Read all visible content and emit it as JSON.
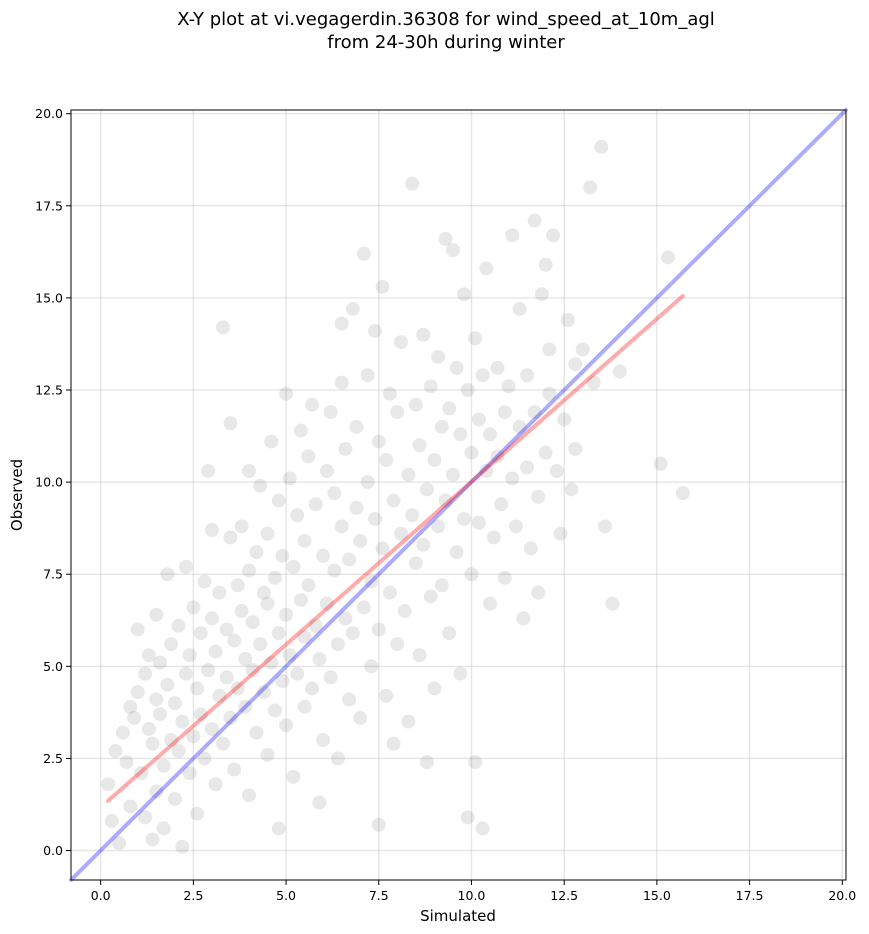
{
  "chart_data": {
    "type": "scatter",
    "title": "X-Y plot at vi.vegagerdin.36308 for wind_speed_at_10m_agl",
    "subtitle": "from 24-30h during winter",
    "xlabel": "Simulated",
    "ylabel": "Observed",
    "xlim": [
      -0.8,
      20.1
    ],
    "ylim": [
      -0.8,
      20.1
    ],
    "xticks": [
      0.0,
      2.5,
      5.0,
      7.5,
      10.0,
      12.5,
      15.0,
      17.5,
      20.0
    ],
    "yticks": [
      0.0,
      2.5,
      5.0,
      7.5,
      10.0,
      12.5,
      15.0,
      17.5,
      20.0
    ],
    "xtick_labels": [
      "0.0",
      "2.5",
      "5.0",
      "7.5",
      "10.0",
      "12.5",
      "15.0",
      "17.5",
      "20.0"
    ],
    "ytick_labels": [
      "0.0",
      "2.5",
      "5.0",
      "7.5",
      "10.0",
      "12.5",
      "15.0",
      "17.5",
      "20.0"
    ],
    "grid": true,
    "lines": [
      {
        "kind": "identity",
        "color": "#0000ff",
        "x": [
          -0.8,
          20.1
        ],
        "y": [
          -0.8,
          20.1
        ]
      },
      {
        "kind": "fit",
        "color": "#ff0000",
        "x": [
          0.2,
          15.7
        ],
        "y": [
          1.35,
          15.05
        ]
      }
    ],
    "point_color": "#000000",
    "points": [
      [
        0.2,
        1.8
      ],
      [
        0.3,
        0.8
      ],
      [
        0.4,
        2.7
      ],
      [
        0.5,
        0.2
      ],
      [
        0.6,
        3.2
      ],
      [
        0.7,
        2.4
      ],
      [
        0.8,
        1.2
      ],
      [
        0.8,
        3.9
      ],
      [
        0.9,
        3.6
      ],
      [
        1.0,
        4.3
      ],
      [
        1.0,
        6.0
      ],
      [
        1.1,
        2.1
      ],
      [
        1.2,
        0.9
      ],
      [
        1.2,
        4.8
      ],
      [
        1.3,
        3.3
      ],
      [
        1.3,
        5.3
      ],
      [
        1.4,
        0.3
      ],
      [
        1.4,
        2.9
      ],
      [
        1.5,
        1.6
      ],
      [
        1.5,
        4.1
      ],
      [
        1.5,
        6.4
      ],
      [
        1.6,
        3.7
      ],
      [
        1.6,
        5.1
      ],
      [
        1.7,
        2.3
      ],
      [
        1.7,
        0.6
      ],
      [
        1.8,
        4.5
      ],
      [
        1.8,
        7.5
      ],
      [
        1.9,
        3.0
      ],
      [
        1.9,
        5.6
      ],
      [
        2.0,
        1.4
      ],
      [
        2.0,
        4.0
      ],
      [
        2.1,
        2.7
      ],
      [
        2.1,
        6.1
      ],
      [
        2.2,
        3.5
      ],
      [
        2.2,
        0.1
      ],
      [
        2.3,
        4.8
      ],
      [
        2.3,
        7.7
      ],
      [
        2.4,
        2.1
      ],
      [
        2.4,
        5.3
      ],
      [
        2.5,
        3.1
      ],
      [
        2.5,
        6.6
      ],
      [
        2.6,
        1.0
      ],
      [
        2.6,
        4.4
      ],
      [
        2.7,
        3.7
      ],
      [
        2.7,
        5.9
      ],
      [
        2.8,
        7.3
      ],
      [
        2.8,
        2.5
      ],
      [
        2.9,
        10.3
      ],
      [
        2.9,
        4.9
      ],
      [
        3.0,
        3.3
      ],
      [
        3.0,
        8.7
      ],
      [
        3.0,
        6.3
      ],
      [
        3.1,
        1.8
      ],
      [
        3.1,
        5.4
      ],
      [
        3.2,
        4.2
      ],
      [
        3.2,
        7.0
      ],
      [
        3.3,
        14.2
      ],
      [
        3.3,
        2.9
      ],
      [
        3.4,
        6.0
      ],
      [
        3.4,
        4.7
      ],
      [
        3.5,
        11.6
      ],
      [
        3.5,
        8.5
      ],
      [
        3.5,
        3.6
      ],
      [
        3.6,
        5.7
      ],
      [
        3.6,
        2.2
      ],
      [
        3.7,
        7.2
      ],
      [
        3.7,
        4.4
      ],
      [
        3.8,
        6.5
      ],
      [
        3.8,
        8.8
      ],
      [
        3.9,
        3.9
      ],
      [
        3.9,
        5.2
      ],
      [
        4.0,
        1.5
      ],
      [
        4.0,
        7.6
      ],
      [
        4.0,
        10.3
      ],
      [
        4.1,
        4.9
      ],
      [
        4.1,
        6.2
      ],
      [
        4.2,
        8.1
      ],
      [
        4.2,
        3.2
      ],
      [
        4.3,
        5.6
      ],
      [
        4.3,
        9.9
      ],
      [
        4.4,
        7.0
      ],
      [
        4.4,
        4.3
      ],
      [
        4.5,
        2.6
      ],
      [
        4.5,
        6.7
      ],
      [
        4.5,
        8.6
      ],
      [
        4.6,
        5.1
      ],
      [
        4.6,
        11.1
      ],
      [
        4.7,
        3.8
      ],
      [
        4.7,
        7.4
      ],
      [
        4.8,
        9.5
      ],
      [
        4.8,
        5.9
      ],
      [
        4.8,
        0.6
      ],
      [
        4.9,
        4.6
      ],
      [
        4.9,
        8.0
      ],
      [
        5.0,
        6.4
      ],
      [
        5.0,
        12.4
      ],
      [
        5.0,
        3.4
      ],
      [
        5.1,
        10.1
      ],
      [
        5.1,
        5.3
      ],
      [
        5.2,
        7.7
      ],
      [
        5.2,
        2.0
      ],
      [
        5.3,
        9.1
      ],
      [
        5.3,
        4.8
      ],
      [
        5.4,
        6.8
      ],
      [
        5.4,
        11.4
      ],
      [
        5.5,
        8.4
      ],
      [
        5.5,
        3.9
      ],
      [
        5.5,
        5.8
      ],
      [
        5.6,
        10.7
      ],
      [
        5.6,
        7.2
      ],
      [
        5.7,
        4.4
      ],
      [
        5.7,
        12.1
      ],
      [
        5.8,
        6.1
      ],
      [
        5.8,
        9.4
      ],
      [
        5.9,
        1.3
      ],
      [
        5.9,
        5.2
      ],
      [
        6.0,
        8.0
      ],
      [
        6.0,
        3.0
      ],
      [
        6.1,
        10.3
      ],
      [
        6.1,
        6.7
      ],
      [
        6.2,
        11.9
      ],
      [
        6.2,
        4.7
      ],
      [
        6.3,
        7.6
      ],
      [
        6.3,
        9.7
      ],
      [
        6.4,
        5.6
      ],
      [
        6.4,
        2.5
      ],
      [
        6.5,
        12.7
      ],
      [
        6.5,
        8.8
      ],
      [
        6.5,
        14.3
      ],
      [
        6.6,
        6.3
      ],
      [
        6.6,
        10.9
      ],
      [
        6.7,
        4.1
      ],
      [
        6.7,
        7.9
      ],
      [
        6.8,
        14.7
      ],
      [
        6.8,
        5.9
      ],
      [
        6.9,
        9.3
      ],
      [
        6.9,
        11.5
      ],
      [
        7.0,
        3.6
      ],
      [
        7.0,
        8.4
      ],
      [
        7.1,
        6.6
      ],
      [
        7.1,
        16.2
      ],
      [
        7.2,
        10.0
      ],
      [
        7.2,
        12.9
      ],
      [
        7.3,
        5.0
      ],
      [
        7.3,
        7.3
      ],
      [
        7.4,
        9.0
      ],
      [
        7.4,
        14.1
      ],
      [
        7.5,
        6.0
      ],
      [
        7.5,
        11.1
      ],
      [
        7.5,
        0.7
      ],
      [
        7.6,
        8.2
      ],
      [
        7.6,
        15.3
      ],
      [
        7.7,
        4.2
      ],
      [
        7.7,
        10.6
      ],
      [
        7.8,
        7.0
      ],
      [
        7.8,
        12.4
      ],
      [
        7.9,
        9.5
      ],
      [
        7.9,
        2.9
      ],
      [
        8.0,
        5.6
      ],
      [
        8.0,
        11.9
      ],
      [
        8.1,
        8.6
      ],
      [
        8.1,
        13.8
      ],
      [
        8.2,
        6.5
      ],
      [
        8.3,
        10.2
      ],
      [
        8.3,
        3.5
      ],
      [
        8.4,
        9.1
      ],
      [
        8.4,
        18.1
      ],
      [
        8.5,
        7.8
      ],
      [
        8.5,
        12.1
      ],
      [
        8.6,
        5.3
      ],
      [
        8.6,
        11.0
      ],
      [
        8.7,
        8.3
      ],
      [
        8.7,
        14.0
      ],
      [
        8.8,
        2.4
      ],
      [
        8.8,
        9.8
      ],
      [
        8.9,
        6.9
      ],
      [
        8.9,
        12.6
      ],
      [
        9.0,
        10.6
      ],
      [
        9.0,
        4.4
      ],
      [
        9.1,
        8.8
      ],
      [
        9.1,
        13.4
      ],
      [
        9.2,
        11.5
      ],
      [
        9.2,
        7.2
      ],
      [
        9.3,
        16.6
      ],
      [
        9.3,
        9.5
      ],
      [
        9.4,
        5.9
      ],
      [
        9.4,
        12.0
      ],
      [
        9.5,
        10.2
      ],
      [
        9.5,
        16.3
      ],
      [
        9.6,
        8.1
      ],
      [
        9.6,
        13.1
      ],
      [
        9.7,
        11.3
      ],
      [
        9.7,
        4.8
      ],
      [
        9.8,
        15.1
      ],
      [
        9.8,
        9.0
      ],
      [
        9.9,
        12.5
      ],
      [
        9.9,
        0.9
      ],
      [
        10.0,
        10.8
      ],
      [
        10.0,
        7.5
      ],
      [
        10.1,
        13.9
      ],
      [
        10.1,
        2.4
      ],
      [
        10.2,
        11.7
      ],
      [
        10.2,
        8.9
      ],
      [
        10.3,
        0.6
      ],
      [
        10.3,
        12.9
      ],
      [
        10.4,
        10.3
      ],
      [
        10.4,
        15.8
      ],
      [
        10.5,
        6.7
      ],
      [
        10.5,
        11.3
      ],
      [
        10.6,
        8.5
      ],
      [
        10.7,
        13.1
      ],
      [
        10.7,
        10.7
      ],
      [
        10.8,
        9.4
      ],
      [
        10.9,
        11.9
      ],
      [
        10.9,
        7.4
      ],
      [
        11.0,
        12.6
      ],
      [
        11.1,
        10.1
      ],
      [
        11.1,
        16.7
      ],
      [
        11.2,
        8.8
      ],
      [
        11.3,
        11.5
      ],
      [
        11.3,
        14.7
      ],
      [
        11.4,
        6.3
      ],
      [
        11.5,
        12.9
      ],
      [
        11.5,
        10.4
      ],
      [
        11.6,
        8.2
      ],
      [
        11.7,
        17.1
      ],
      [
        11.7,
        11.9
      ],
      [
        11.8,
        9.6
      ],
      [
        11.8,
        7.0
      ],
      [
        11.9,
        15.1
      ],
      [
        12.0,
        10.8
      ],
      [
        12.0,
        15.9
      ],
      [
        12.1,
        13.6
      ],
      [
        12.1,
        12.4
      ],
      [
        12.2,
        16.7
      ],
      [
        12.3,
        10.3
      ],
      [
        12.4,
        8.6
      ],
      [
        12.5,
        11.7
      ],
      [
        12.6,
        14.4
      ],
      [
        12.7,
        9.8
      ],
      [
        12.8,
        13.2
      ],
      [
        12.8,
        10.9
      ],
      [
        13.0,
        13.6
      ],
      [
        13.2,
        18.0
      ],
      [
        13.3,
        12.7
      ],
      [
        13.5,
        19.1
      ],
      [
        13.6,
        8.8
      ],
      [
        13.8,
        6.7
      ],
      [
        14.0,
        13.0
      ],
      [
        15.1,
        10.5
      ],
      [
        15.3,
        16.1
      ],
      [
        15.7,
        9.7
      ]
    ]
  }
}
